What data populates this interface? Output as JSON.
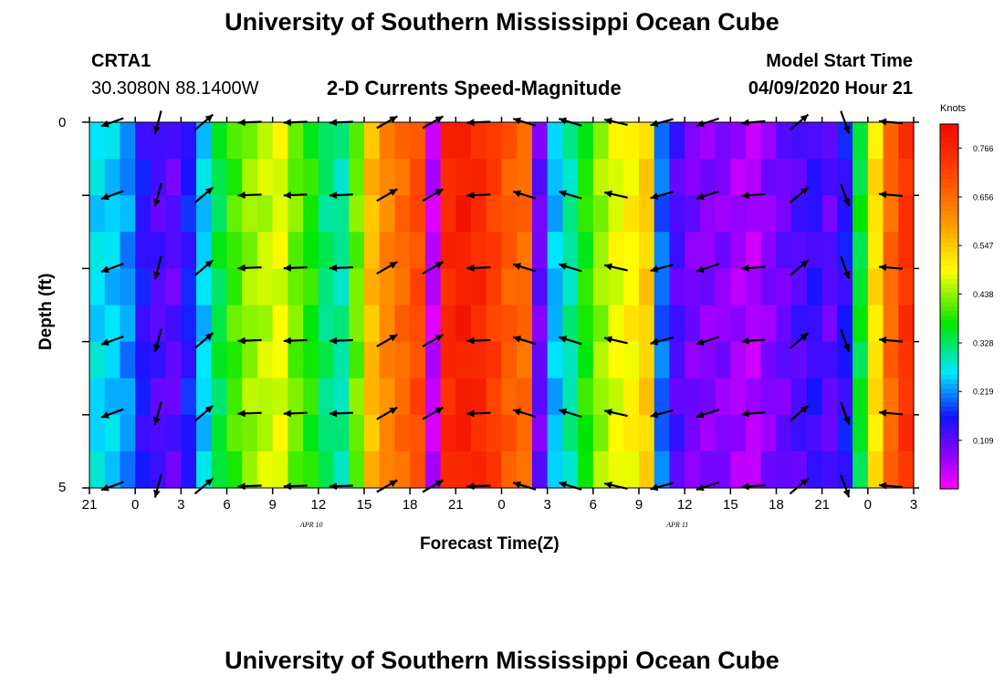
{
  "header": {
    "title_top": "University of Southern Mississippi Ocean Cube",
    "title_bottom": "University of Southern Mississippi Ocean Cube",
    "station_id": "CRTA1",
    "station_coords": "30.3080N 88.1400W",
    "chart_title": "2-D Currents Speed-Magnitude",
    "model_label": "Model Start Time",
    "model_time": "04/09/2020 Hour 21"
  },
  "chart_data": {
    "type": "heatmap",
    "title": "2-D Currents Speed-Magnitude",
    "xlabel": "Forecast Time(Z)",
    "ylabel": "Depth (ft)",
    "x_tick_labels": [
      "21",
      "0",
      "3",
      "6",
      "9",
      "12",
      "15",
      "18",
      "21",
      "0",
      "3",
      "6",
      "9",
      "12",
      "15",
      "18",
      "21",
      "0",
      "3"
    ],
    "x_date_labels": [
      {
        "tick_index": 5,
        "text": "APR 10"
      },
      {
        "tick_index": 13,
        "text": "APR 11"
      }
    ],
    "x_range_hours": [
      0,
      54
    ],
    "ylim": [
      0,
      5
    ],
    "y_tick_labels": [
      "0",
      "5"
    ],
    "colorbar": {
      "units": "Knots",
      "ticks": [
        "0.766",
        "0.656",
        "0.547",
        "0.438",
        "0.328",
        "0.219",
        "0.109"
      ],
      "min": 0,
      "max": 0.82
    },
    "speed_by_hour": [
      0.26,
      0.25,
      0.22,
      0.15,
      0.12,
      0.11,
      0.16,
      0.25,
      0.34,
      0.4,
      0.44,
      0.46,
      0.48,
      0.42,
      0.38,
      0.32,
      0.3,
      0.42,
      0.56,
      0.62,
      0.66,
      0.7,
      0.04,
      0.76,
      0.78,
      0.76,
      0.72,
      0.68,
      0.66,
      0.1,
      0.24,
      0.3,
      0.38,
      0.44,
      0.48,
      0.5,
      0.54,
      0.2,
      0.12,
      0.09,
      0.08,
      0.08,
      0.06,
      0.05,
      0.08,
      0.1,
      0.12,
      0.14,
      0.11,
      0.15,
      0.35,
      0.52,
      0.66,
      0.74
    ],
    "vectors_rows_depth_ft": [
      0,
      1,
      2,
      3,
      4,
      5
    ],
    "vectors": [
      {
        "hour": 1.5,
        "angle_deg": 200
      },
      {
        "hour": 4.5,
        "angle_deg": 255
      },
      {
        "hour": 7.5,
        "angle_deg": 40
      },
      {
        "hour": 10.5,
        "angle_deg": 182
      },
      {
        "hour": 13.5,
        "angle_deg": 182
      },
      {
        "hour": 16.5,
        "angle_deg": 182
      },
      {
        "hour": 19.5,
        "angle_deg": 30
      },
      {
        "hour": 22.5,
        "angle_deg": 30
      },
      {
        "hour": 25.5,
        "angle_deg": 182
      },
      {
        "hour": 28.5,
        "angle_deg": 163
      },
      {
        "hour": 31.5,
        "angle_deg": 163
      },
      {
        "hour": 34.5,
        "angle_deg": 167
      },
      {
        "hour": 37.5,
        "angle_deg": 195
      },
      {
        "hour": 40.5,
        "angle_deg": 198
      },
      {
        "hour": 43.5,
        "angle_deg": 185
      },
      {
        "hour": 46.5,
        "angle_deg": 40
      },
      {
        "hour": 49.5,
        "angle_deg": 290
      },
      {
        "hour": 52.5,
        "angle_deg": 175
      }
    ]
  }
}
